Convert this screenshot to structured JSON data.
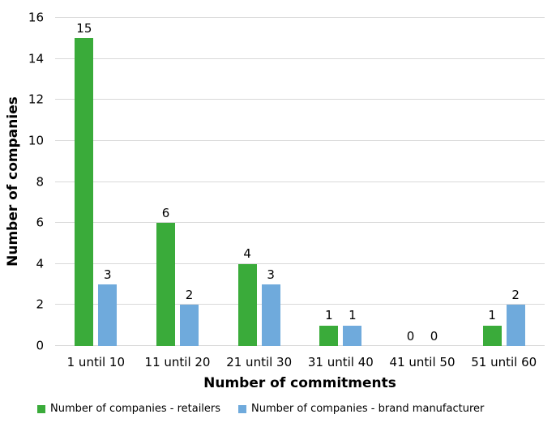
{
  "chart_data": {
    "type": "bar",
    "title": "",
    "xlabel": "Number of commitments",
    "ylabel": "Number of companies",
    "ylim": [
      0,
      16
    ],
    "yticks": [
      0,
      2,
      4,
      6,
      8,
      10,
      12,
      14,
      16
    ],
    "grid": true,
    "data_labels": true,
    "legend_position": "bottom",
    "categories": [
      "1 until 10",
      "11 until 20",
      "21 until 30",
      "31 until 40",
      "41 until 50",
      "51 until 60"
    ],
    "series": [
      {
        "name": "Number of companies - retailers",
        "color": "#3aab3a",
        "values": [
          15,
          6,
          4,
          1,
          0,
          1
        ]
      },
      {
        "name": "Number of companies - brand manufacturer",
        "color": "#6faadc",
        "values": [
          3,
          2,
          3,
          1,
          0,
          2
        ]
      }
    ]
  },
  "colors": {
    "background": "#ffffff",
    "gridline": "#d9d9d9",
    "text": "#000000"
  }
}
